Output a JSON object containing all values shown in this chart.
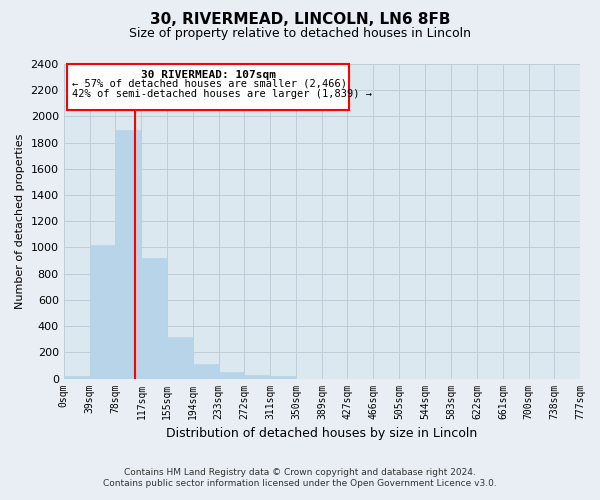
{
  "title": "30, RIVERMEAD, LINCOLN, LN6 8FB",
  "subtitle": "Size of property relative to detached houses in Lincoln",
  "xlabel": "Distribution of detached houses by size in Lincoln",
  "ylabel": "Number of detached properties",
  "bin_edges": [
    0,
    39,
    78,
    117,
    155,
    194,
    233,
    272,
    311,
    350,
    389,
    427,
    466,
    505,
    544,
    583,
    622,
    661,
    700,
    738,
    777
  ],
  "bar_heights": [
    20,
    1020,
    1900,
    920,
    320,
    110,
    50,
    30,
    20,
    0,
    0,
    0,
    0,
    0,
    0,
    0,
    0,
    0,
    0,
    0
  ],
  "bar_color": "#b8d4e8",
  "bar_edgecolor": "#b8d4e8",
  "property_line_x": 107,
  "property_line_color": "red",
  "ylim": [
    0,
    2400
  ],
  "yticks": [
    0,
    200,
    400,
    600,
    800,
    1000,
    1200,
    1400,
    1600,
    1800,
    2000,
    2200,
    2400
  ],
  "xtick_labels": [
    "0sqm",
    "39sqm",
    "78sqm",
    "117sqm",
    "155sqm",
    "194sqm",
    "233sqm",
    "272sqm",
    "311sqm",
    "350sqm",
    "389sqm",
    "427sqm",
    "466sqm",
    "505sqm",
    "544sqm",
    "583sqm",
    "622sqm",
    "661sqm",
    "700sqm",
    "738sqm",
    "777sqm"
  ],
  "annotation_title": "30 RIVERMEAD: 107sqm",
  "annotation_line1": "← 57% of detached houses are smaller (2,466)",
  "annotation_line2": "42% of semi-detached houses are larger (1,839) →",
  "footer_line1": "Contains HM Land Registry data © Crown copyright and database right 2024.",
  "footer_line2": "Contains public sector information licensed under the Open Government Licence v3.0.",
  "background_color": "#e8eef4",
  "plot_bg_color": "#dce8f0",
  "grid_color": "#c0ccd8"
}
